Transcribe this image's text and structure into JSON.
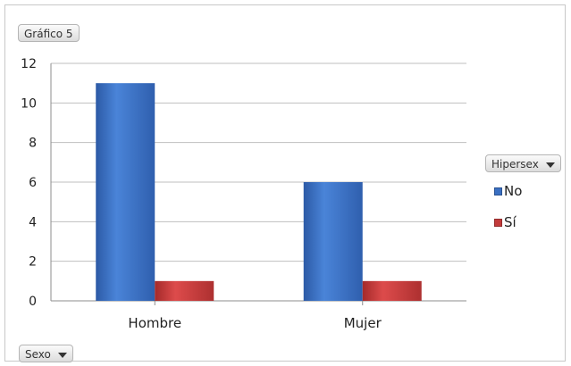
{
  "chart_title_button": "Gráfico 5",
  "axis_filter_button": "Sexo",
  "legend_filter_button": "Hipersex",
  "colors": {
    "series_no": "#3a6fc2",
    "series_si": "#c33b3b",
    "grid": "#bfbfbf"
  },
  "chart_data": {
    "type": "bar",
    "categories": [
      "Hombre",
      "Mujer"
    ],
    "series": [
      {
        "name": "No",
        "values": [
          11,
          6
        ]
      },
      {
        "name": "Sí",
        "values": [
          1,
          1
        ]
      }
    ],
    "ylim": [
      0,
      12
    ],
    "yticks": [
      0,
      2,
      4,
      6,
      8,
      10,
      12
    ],
    "grid": true,
    "legend": "right"
  }
}
